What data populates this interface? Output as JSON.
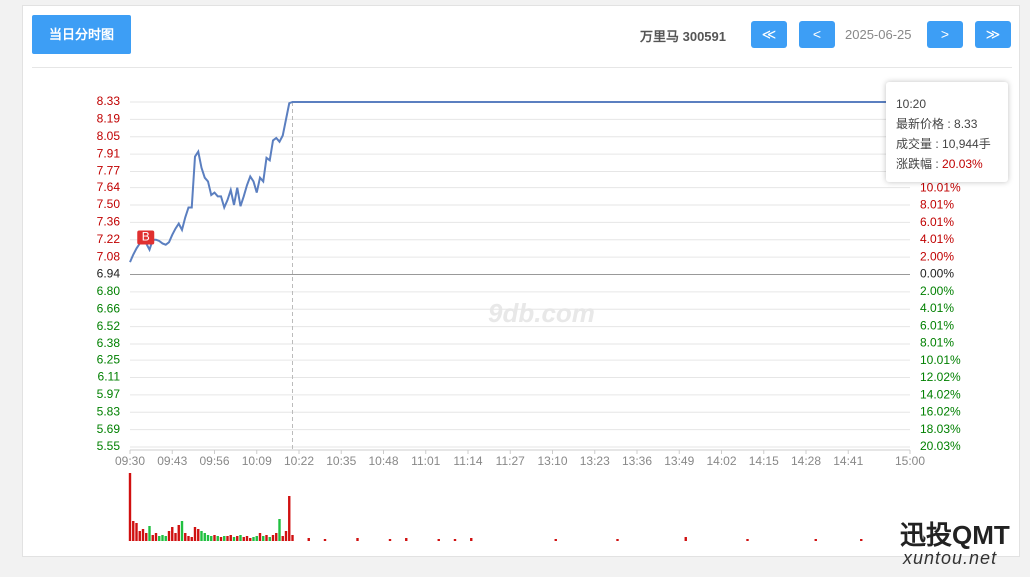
{
  "header": {
    "tab": "当日分时图",
    "stock": "万里马 300591",
    "first": "≪",
    "prev": "<",
    "date": "2025-06-25",
    "next": ">",
    "last": "≫"
  },
  "tooltip": {
    "time": "10:20",
    "rows": [
      {
        "label": "最新价格 : ",
        "value": "8.33"
      },
      {
        "label": "成交量 : ",
        "value": "10,944手"
      },
      {
        "label": "涨跌幅 : ",
        "value": "20.03%"
      }
    ]
  },
  "watermarks": {
    "center": "9db.com",
    "brand": "迅投QMT",
    "site": "xuntou.net"
  },
  "chart_data": {
    "type": "line",
    "x": [
      0,
      1,
      2,
      3,
      4,
      5,
      6,
      7,
      8,
      9,
      10,
      11,
      12,
      13,
      14,
      15,
      16,
      17,
      18,
      19,
      20,
      21,
      22,
      23,
      24,
      25,
      26,
      27,
      28,
      29,
      30,
      31,
      32,
      33,
      34,
      35,
      36,
      37,
      38,
      39,
      40,
      41,
      42,
      43,
      44,
      45,
      46,
      47,
      48,
      49,
      50,
      240
    ],
    "series": [
      {
        "name": "价格",
        "color": "#5b7fc0",
        "values": [
          7.04,
          7.1,
          7.15,
          7.19,
          7.19,
          7.19,
          7.14,
          7.22,
          7.22,
          7.21,
          7.19,
          7.18,
          7.2,
          7.26,
          7.31,
          7.35,
          7.3,
          7.4,
          7.48,
          7.48,
          7.89,
          7.93,
          7.8,
          7.72,
          7.69,
          7.58,
          7.6,
          7.57,
          7.57,
          7.48,
          7.54,
          7.62,
          7.5,
          7.64,
          7.49,
          7.57,
          7.66,
          7.73,
          7.69,
          7.6,
          7.72,
          7.69,
          7.88,
          7.86,
          8.02,
          8.04,
          8.01,
          8.06,
          8.19,
          8.32,
          8.33,
          8.33
        ]
      }
    ],
    "annotation": {
      "text": "B",
      "x": 5,
      "y": 7.19,
      "color": "#e03030"
    },
    "xlim": [
      0,
      240
    ],
    "xticks": [
      {
        "value": 0,
        "label": "09:30"
      },
      {
        "value": 13,
        "label": "09:43"
      },
      {
        "value": 26,
        "label": "09:56"
      },
      {
        "value": 39,
        "label": "10:09"
      },
      {
        "value": 52,
        "label": "10:22"
      },
      {
        "value": 65,
        "label": "10:35"
      },
      {
        "value": 78,
        "label": "10:48"
      },
      {
        "value": 91,
        "label": "11:01"
      },
      {
        "value": 104,
        "label": "11:14"
      },
      {
        "value": 117,
        "label": "11:27"
      },
      {
        "value": 130,
        "label": "13:10"
      },
      {
        "value": 143,
        "label": "13:23"
      },
      {
        "value": 156,
        "label": "13:36"
      },
      {
        "value": 169,
        "label": "13:49"
      },
      {
        "value": 182,
        "label": "14:02"
      },
      {
        "value": 195,
        "label": "14:15"
      },
      {
        "value": 208,
        "label": "14:28"
      },
      {
        "value": 221,
        "label": "14:41"
      },
      {
        "value": 240,
        "label": "15:00"
      }
    ],
    "ylim": [
      5.55,
      8.33
    ],
    "yticks": [
      8.33,
      8.19,
      8.05,
      7.91,
      7.77,
      7.64,
      {
        "value": 7.5,
        "label": "7.50"
      },
      7.36,
      7.22,
      7.08,
      6.94,
      {
        "value": 6.8,
        "label": "6.80"
      },
      6.66,
      6.52,
      6.38,
      6.25,
      6.11,
      5.97,
      5.83,
      5.69,
      5.55
    ],
    "y2lim": [
      -20.03,
      20.03
    ],
    "y2ticks": [
      {
        "value": 10.01,
        "label": "10.01%"
      },
      {
        "value": 8.01,
        "label": "8.01%"
      },
      {
        "value": 6.01,
        "label": "6.01%"
      },
      {
        "value": 4.01,
        "label": "4.01%"
      },
      {
        "value": 2.0,
        "label": "2.00%"
      },
      {
        "value": 0,
        "label": "0.00%"
      },
      {
        "value": -2.0,
        "label": "2.00%"
      },
      {
        "value": -4.01,
        "label": "4.01%"
      },
      {
        "value": -6.01,
        "label": "6.01%"
      },
      {
        "value": -8.01,
        "label": "8.01%"
      },
      {
        "value": -10.01,
        "label": "10.01%"
      },
      {
        "value": -12.02,
        "label": "12.02%"
      },
      {
        "value": -14.02,
        "label": "14.02%"
      },
      {
        "value": -16.02,
        "label": "16.02%"
      },
      {
        "value": -18.03,
        "label": "18.03%"
      },
      {
        "value": -20.03,
        "label": "20.03%"
      }
    ],
    "grid": true,
    "up_color": "#c00000",
    "down_color": "#008000",
    "flat_color": "#222222",
    "volume": {
      "x": [
        0,
        1,
        2,
        3,
        4,
        5,
        6,
        7,
        8,
        9,
        10,
        11,
        12,
        13,
        14,
        15,
        16,
        17,
        18,
        19,
        20,
        21,
        22,
        23,
        24,
        25,
        26,
        27,
        28,
        29,
        30,
        31,
        32,
        33,
        34,
        35,
        36,
        37,
        38,
        39,
        40,
        41,
        42,
        43,
        44,
        45,
        46,
        47,
        48,
        49,
        50,
        55,
        60,
        70,
        80,
        85,
        95,
        100,
        105,
        131,
        150,
        171,
        190,
        211,
        225
      ],
      "values": [
        68,
        20,
        18,
        10,
        12,
        8,
        15,
        6,
        8,
        5,
        6,
        5,
        10,
        14,
        8,
        16,
        20,
        8,
        5,
        4,
        14,
        12,
        10,
        8,
        6,
        5,
        6,
        5,
        4,
        5,
        5,
        6,
        4,
        5,
        6,
        4,
        5,
        3,
        4,
        5,
        8,
        5,
        6,
        4,
        6,
        8,
        22,
        5,
        10,
        45,
        6,
        3,
        2,
        3,
        2,
        3,
        2,
        2,
        3,
        2,
        2,
        4,
        2,
        2,
        2
      ],
      "ylim": [
        0,
        68
      ]
    }
  }
}
